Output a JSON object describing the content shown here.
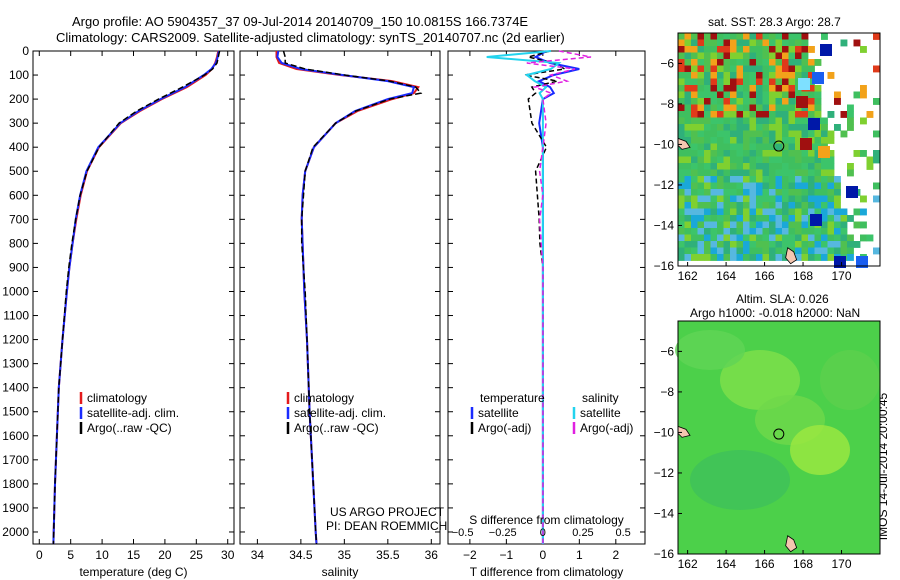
{
  "header": {
    "line1": "Argo profile: AO 5904357_37 09-Jul-2014 20140709_150 10.0815S 166.7374E",
    "line2": "Climatology: CARS2009. Satellite-adjusted climatology: synTS_20140707.nc (2d earlier)"
  },
  "sst_title": "sat. SST: 28.3 Argo: 28.7",
  "sla_title1": "Altim. SLA: 0.026",
  "sla_title2": "Argo h1000: -0.018 h2000: NaN",
  "project_line1": "US ARGO PROJECT",
  "project_line2": "PI: DEAN ROEMMICH",
  "side_label": "IMOS 14-Jul-2014 20:00:45",
  "colors": {
    "climatology": "#e41a1c",
    "satellite": "#1a2bff",
    "argo": "#000000",
    "satellite_s": "#22d3ee",
    "argo_s": "#e020e0"
  },
  "chart_data": [
    {
      "type": "line",
      "id": "temperature",
      "xlabel": "temperature (deg C)",
      "xlim": [
        -1,
        31
      ],
      "ylim": [
        2050,
        0
      ],
      "xticks": [
        0,
        5,
        10,
        15,
        20,
        25,
        30
      ],
      "yticks": [
        0,
        100,
        200,
        300,
        400,
        500,
        600,
        700,
        800,
        900,
        1000,
        1100,
        1200,
        1300,
        1400,
        1500,
        1600,
        1700,
        1800,
        1900,
        2000
      ],
      "legend": [
        "climatology",
        "satellite-adj. clim.",
        "Argo(..raw -QC)"
      ],
      "depth": [
        0,
        25,
        50,
        75,
        100,
        150,
        200,
        250,
        300,
        400,
        500,
        600,
        700,
        800,
        900,
        1000,
        1200,
        1400,
        1600,
        1800,
        2000,
        2050
      ],
      "series": [
        {
          "name": "climatology",
          "values": [
            28.5,
            28.3,
            28.0,
            27.5,
            26.5,
            23.5,
            19.5,
            16.0,
            13.0,
            9.5,
            7.6,
            6.6,
            5.9,
            5.3,
            4.8,
            4.4,
            3.7,
            3.1,
            2.8,
            2.5,
            2.3,
            2.25
          ]
        },
        {
          "name": "satellite-adj. clim.",
          "values": [
            28.6,
            28.4,
            28.1,
            27.4,
            26.2,
            23.2,
            19.3,
            15.8,
            12.9,
            9.4,
            7.5,
            6.5,
            5.8,
            5.3,
            4.8,
            4.4,
            3.7,
            3.1,
            2.8,
            2.5,
            2.3,
            2.25
          ]
        },
        {
          "name": "Argo(..raw -QC)",
          "values": [
            28.7,
            28.5,
            28.3,
            27.6,
            26.3,
            22.8,
            19.0,
            15.5,
            12.7,
            9.5,
            7.6,
            6.5,
            5.8,
            5.2,
            4.7,
            4.3,
            3.7,
            3.1,
            2.8,
            2.5,
            2.3,
            2.25
          ]
        }
      ]
    },
    {
      "type": "line",
      "id": "salinity",
      "xlabel": "salinity",
      "xlim": [
        33.8,
        36.1
      ],
      "ylim": [
        2050,
        0
      ],
      "xticks": [
        34,
        34.5,
        35,
        35.5,
        36
      ],
      "legend": [
        "climatology",
        "satellite-adj. clim.",
        "Argo(..raw -QC)"
      ],
      "depth": [
        0,
        25,
        50,
        75,
        100,
        125,
        150,
        175,
        200,
        250,
        300,
        400,
        500,
        600,
        700,
        800,
        1000,
        1200,
        1500,
        2000,
        2050
      ],
      "series": [
        {
          "name": "climatology",
          "values": [
            34.22,
            34.22,
            34.25,
            34.45,
            34.95,
            35.55,
            35.85,
            35.8,
            35.55,
            35.15,
            34.9,
            34.65,
            34.55,
            34.52,
            34.51,
            34.52,
            34.54,
            34.57,
            34.6,
            34.67,
            34.68
          ]
        },
        {
          "name": "satellite-adj. clim.",
          "values": [
            34.24,
            34.23,
            34.28,
            34.5,
            34.98,
            35.5,
            35.8,
            35.78,
            35.5,
            35.12,
            34.9,
            34.65,
            34.55,
            34.52,
            34.51,
            34.52,
            34.54,
            34.57,
            34.6,
            34.67,
            34.68
          ]
        },
        {
          "name": "Argo(..raw -QC)",
          "values": [
            34.3,
            34.32,
            34.32,
            34.55,
            35.0,
            35.52,
            35.82,
            35.88,
            35.52,
            35.13,
            34.9,
            34.64,
            34.55,
            34.53,
            34.51,
            34.51,
            34.55,
            34.57,
            34.6,
            34.67,
            34.68
          ]
        }
      ]
    },
    {
      "type": "line",
      "id": "difference",
      "xlabel": "T difference from climatology",
      "xlabel_top": "S difference from climatology",
      "xlim": [
        -2.6,
        2.8
      ],
      "ylim": [
        2050,
        0
      ],
      "xticks": [
        -2,
        -1,
        0,
        1,
        2
      ],
      "xticks_s": [
        -0.5,
        -0.25,
        0,
        0.25,
        0.5
      ],
      "legend_headers": [
        "temperature",
        "salinity"
      ],
      "legend": [
        "satellite",
        "Argo(-adj)",
        "satellite",
        "Argo(-adj)"
      ],
      "depth": [
        0,
        25,
        50,
        75,
        100,
        125,
        150,
        175,
        200,
        300,
        400,
        500,
        600,
        700,
        800,
        900,
        1000,
        1200,
        1500,
        2000,
        2050
      ],
      "series": [
        {
          "name": "satellite",
          "quantity": "T",
          "values": [
            0.1,
            -0.2,
            0.2,
            1.0,
            0.3,
            -0.1,
            0.2,
            0.3,
            0.0,
            -0.1,
            0.0,
            0.0,
            0.0,
            0.0,
            0.0,
            0.0,
            0.0,
            0.0,
            0.0,
            0.0,
            0.0
          ]
        },
        {
          "name": "Argo(-adj)",
          "quantity": "T",
          "values": [
            0.2,
            -0.4,
            0.3,
            0.6,
            -0.5,
            0.4,
            -0.3,
            -0.2,
            -0.4,
            -0.3,
            0.1,
            -0.2,
            -0.15,
            -0.1,
            -0.08,
            0.0,
            0.0,
            0.0,
            0.0,
            0.0,
            0.0
          ]
        },
        {
          "name": "satellite",
          "quantity": "S",
          "values": [
            0.05,
            -0.35,
            0.1,
            0.05,
            -0.1,
            -0.05,
            0.02,
            -0.02,
            0.0,
            0.0,
            0.0,
            0.0,
            0.0,
            0.0,
            0.0,
            0.0,
            0.0,
            0.0,
            0.0,
            0.0,
            0.0
          ]
        },
        {
          "name": "Argo(-adj)",
          "quantity": "S",
          "values": [
            0.1,
            0.3,
            -0.1,
            0.2,
            0.05,
            0.15,
            -0.05,
            0.05,
            0.0,
            0.02,
            0.0,
            -0.02,
            0.0,
            -0.02,
            -0.01,
            0.0,
            0.0,
            0.0,
            0.0,
            0.0,
            0.0
          ]
        }
      ]
    },
    {
      "type": "heatmap",
      "id": "sst-map",
      "title": "sat. SST: 28.3 Argo: 28.7",
      "xlim": [
        161.5,
        172
      ],
      "ylim": [
        -16,
        -4.5
      ],
      "xticks": [
        162,
        164,
        166,
        168,
        170
      ],
      "yticks": [
        -6,
        -8,
        -10,
        -12,
        -14,
        -16
      ],
      "marker": {
        "lon": 166.74,
        "lat": -10.08
      }
    },
    {
      "type": "heatmap",
      "id": "sla-map",
      "xlim": [
        161.5,
        172
      ],
      "ylim": [
        -16,
        -4.5
      ],
      "xticks": [
        162,
        164,
        166,
        168,
        170
      ],
      "yticks": [
        -6,
        -8,
        -10,
        -12,
        -14,
        -16
      ],
      "marker": {
        "lon": 166.74,
        "lat": -10.08
      }
    }
  ]
}
